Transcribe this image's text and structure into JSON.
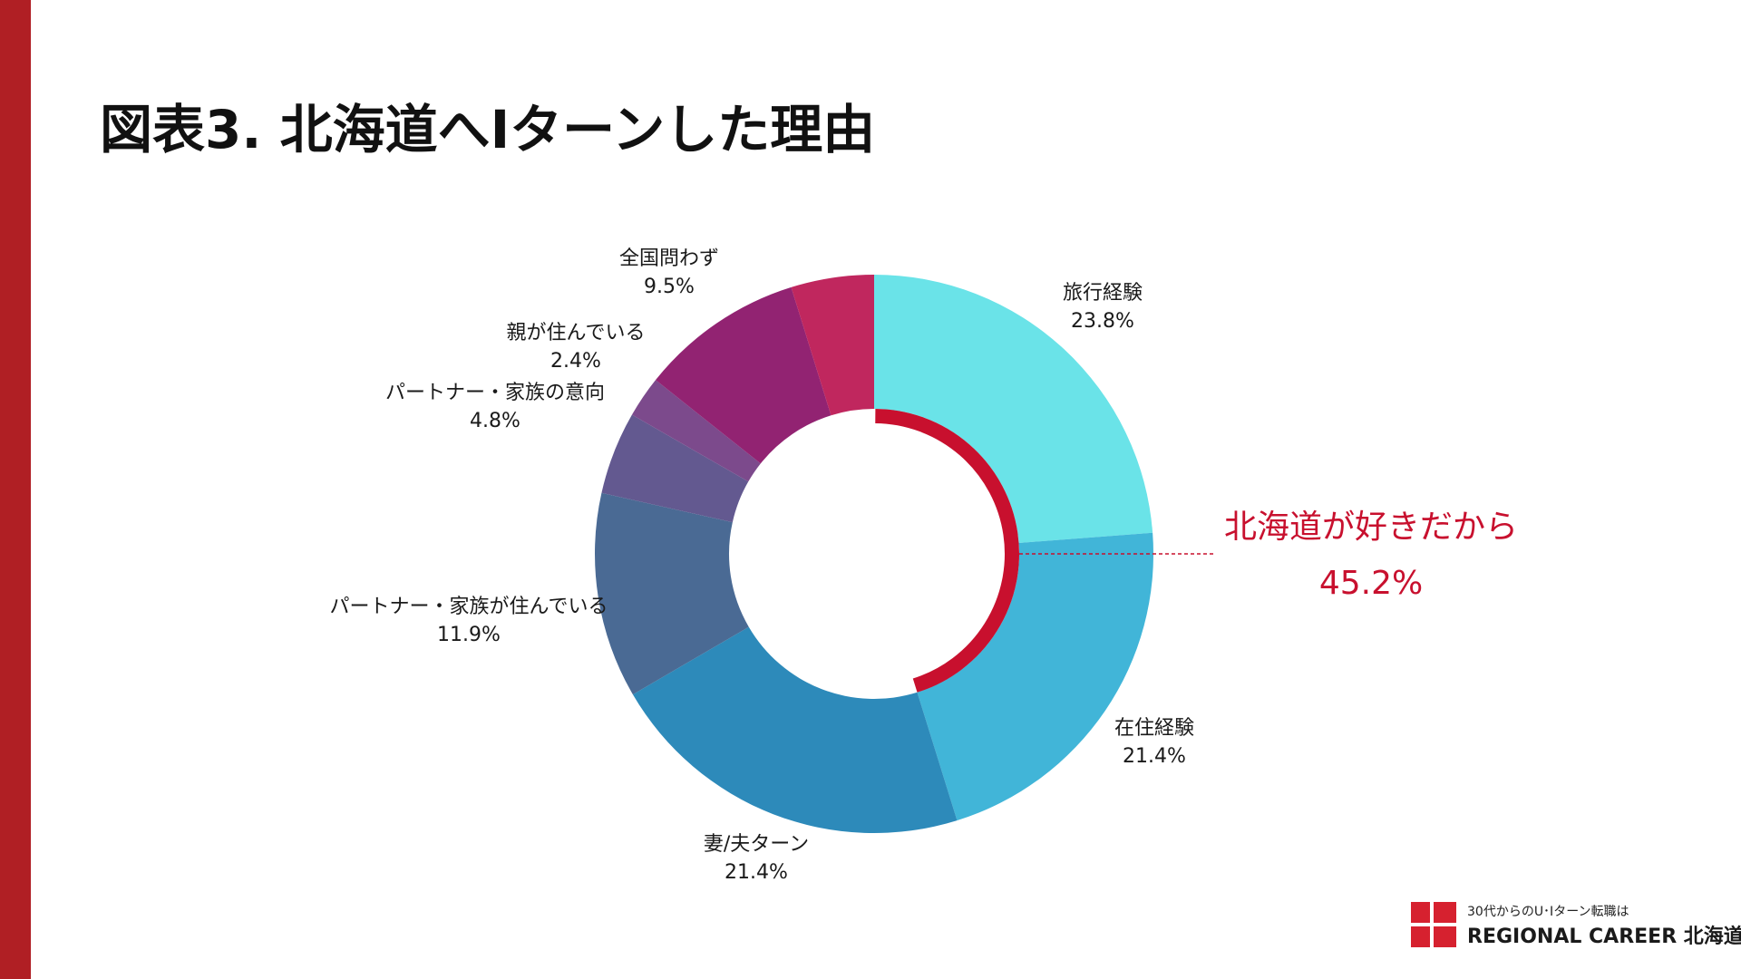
{
  "page": {
    "title": "図表3. 北海道へIターンした理由"
  },
  "chart_data": {
    "type": "pie",
    "style": "donut",
    "categories": [
      "旅行経験",
      "在住経験",
      "妻/夫ターン",
      "パートナー・家族が住んでいる",
      "パートナー・家族の意向",
      "親が住んでいる",
      "全国問わず",
      ""
    ],
    "values": [
      23.8,
      21.4,
      21.4,
      11.9,
      4.8,
      2.4,
      9.5,
      4.8
    ],
    "value_labels": [
      "23.8%",
      "21.4%",
      "21.4%",
      "11.9%",
      "4.8%",
      "2.4%",
      "9.5%",
      ""
    ],
    "colors": [
      "#6ae3e8",
      "#41b5d8",
      "#2d8aba",
      "#4a6a94",
      "#635990",
      "#7c4a8c",
      "#922372",
      "#c0275e"
    ],
    "highlight": {
      "label": "北海道が好きだから",
      "value": "45.2%",
      "covers_categories": [
        "旅行経験",
        "在住経験"
      ],
      "color": "#c8102e"
    }
  },
  "logo": {
    "tagline": "30代からのU･Iターン転職は",
    "name": "REGIONAL CAREER 北海道",
    "color": "#d6212f"
  }
}
